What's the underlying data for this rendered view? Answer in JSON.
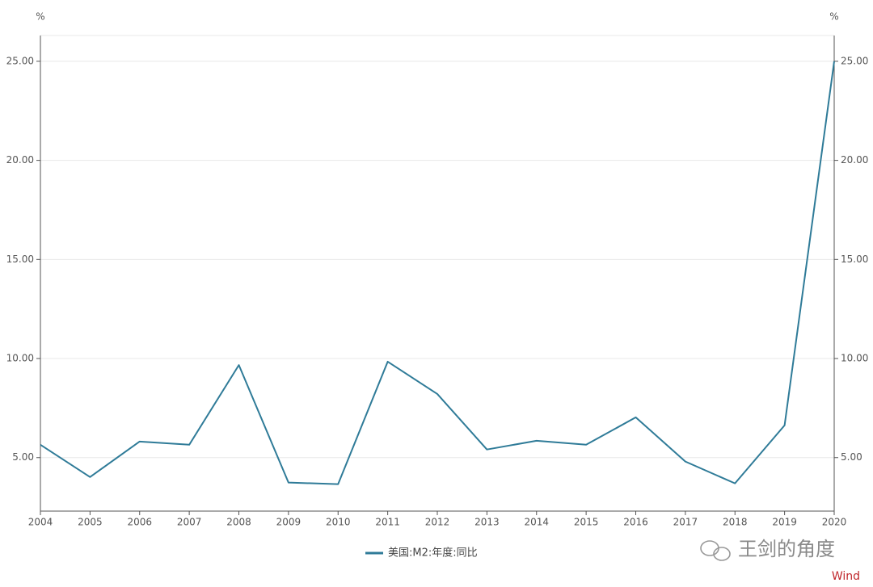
{
  "chart_data": {
    "type": "line",
    "y_unit": "%",
    "y2_unit": "%",
    "x": [
      2004,
      2005,
      2006,
      2007,
      2008,
      2009,
      2010,
      2011,
      2012,
      2013,
      2014,
      2015,
      2016,
      2017,
      2018,
      2019,
      2020
    ],
    "xlim": [
      2004,
      2020
    ],
    "xticks": [
      2004,
      2005,
      2006,
      2007,
      2008,
      2009,
      2010,
      2011,
      2012,
      2013,
      2014,
      2015,
      2016,
      2017,
      2018,
      2019,
      2020
    ],
    "series": [
      {
        "name": "美国:M2:年度:同比",
        "color": "#2f7b98",
        "values": [
          5.65,
          4.02,
          5.81,
          5.65,
          9.67,
          3.74,
          3.66,
          9.84,
          8.21,
          5.41,
          5.85,
          5.65,
          7.03,
          4.8,
          3.7,
          6.63,
          25.0
        ]
      }
    ],
    "ylim": [
      2.3,
      26.3
    ],
    "yticks": [
      {
        "value": 5,
        "label": "5.00"
      },
      {
        "value": 10,
        "label": "10.00"
      },
      {
        "value": 15,
        "label": "15.00"
      },
      {
        "value": 20,
        "label": "20.00"
      },
      {
        "value": 25,
        "label": "25.00"
      }
    ],
    "y2lim": [
      2.3,
      26.3
    ],
    "y2ticks": [
      {
        "value": 5,
        "label": "5.00"
      },
      {
        "value": 10,
        "label": "10.00"
      },
      {
        "value": 15,
        "label": "15.00"
      },
      {
        "value": 20,
        "label": "20.00"
      },
      {
        "value": 25,
        "label": "25.00"
      }
    ],
    "grid": true,
    "legend": "bottom",
    "watermark": "王剑的角度",
    "source": "Wind"
  }
}
